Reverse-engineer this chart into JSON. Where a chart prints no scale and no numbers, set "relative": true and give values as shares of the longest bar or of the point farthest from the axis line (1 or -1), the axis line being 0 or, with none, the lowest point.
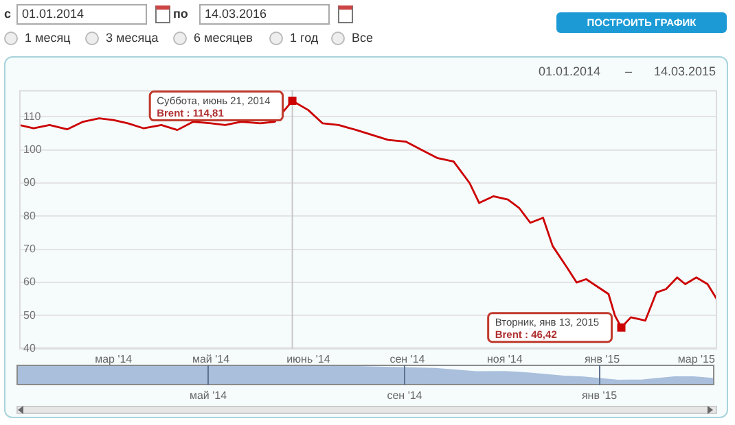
{
  "chart_data": [
    {
      "type": "line",
      "x": [
        "2014-01-01",
        "2014-01-10",
        "2014-01-20",
        "2014-01-31",
        "2014-02-10",
        "2014-02-20",
        "2014-03-01",
        "2014-03-10",
        "2014-03-20",
        "2014-03-31",
        "2014-04-10",
        "2014-04-20",
        "2014-05-01",
        "2014-05-10",
        "2014-05-20",
        "2014-06-01",
        "2014-06-10",
        "2014-06-21",
        "2014-07-01",
        "2014-07-10",
        "2014-07-20",
        "2014-07-31",
        "2014-08-10",
        "2014-08-20",
        "2014-08-31",
        "2014-09-10",
        "2014-09-20",
        "2014-09-30",
        "2014-10-10",
        "2014-10-16",
        "2014-10-25",
        "2014-11-03",
        "2014-11-10",
        "2014-11-17",
        "2014-11-25",
        "2014-12-01",
        "2014-12-10",
        "2014-12-16",
        "2014-12-22",
        "2015-01-05",
        "2015-01-09",
        "2015-01-13",
        "2015-01-19",
        "2015-01-28",
        "2015-02-04",
        "2015-02-10",
        "2015-02-17",
        "2015-02-22",
        "2015-03-01",
        "2015-03-08",
        "2015-03-14"
      ],
      "series": [
        {
          "color": "#cc0000",
          "values": [
            107.5,
            106.5,
            107.5,
            106.2,
            108.5,
            109.5,
            109,
            108,
            106.5,
            107.5,
            106,
            108.5,
            108,
            107.5,
            108.5,
            108,
            108.5,
            114.81,
            112,
            108,
            107.5,
            106,
            104.5,
            103,
            102.5,
            100,
            97.5,
            96.5,
            90,
            84,
            86,
            85,
            82.5,
            78,
            79.5,
            71,
            64.5,
            60,
            61,
            56.5,
            50,
            46.42,
            49.5,
            48.5,
            57,
            58,
            61.5,
            59.5,
            61.5,
            59.5,
            54.8
          ]
        }
      ],
      "xlim": [
        "2014-01-01",
        "2015-03-14"
      ],
      "xticks": [
        {
          "value": "2014-03-01",
          "label": "мар '14"
        },
        {
          "value": "2014-05-01",
          "label": "май '14"
        },
        {
          "value": "2014-07-01",
          "label": "июнь '14"
        },
        {
          "value": "2014-09-01",
          "label": "сен '14"
        },
        {
          "value": "2014-11-01",
          "label": "ноя '14"
        },
        {
          "value": "2015-01-01",
          "label": "янв '15"
        },
        {
          "value": "2015-03-01",
          "label": "мар '15"
        }
      ],
      "ylim": [
        40,
        118
      ],
      "yticks": [
        40,
        50,
        60,
        70,
        80,
        90,
        100,
        110
      ],
      "grid": "y",
      "marker": "none",
      "legend": false,
      "ref_lines": [
        {
          "axis": "x",
          "value": "2014-06-21",
          "color": "#c8c8c8"
        }
      ],
      "annotations": [
        "с",
        "01.01.2014",
        "по",
        "14.03.2016",
        "1 месяц",
        "3 месяца",
        "6 месяцев",
        "1 год",
        "Все",
        "ПОСТРОИТЬ ГРАФИК",
        "01.01.2014",
        "–",
        "14.03.2015",
        {
          "text": "Суббота, июнь 21, 2014\nBrent : 114,81",
          "x": "2014-06-21",
          "y": 114.81
        },
        {
          "text": "Вторник, янв 13, 2015\nBrent : 46,42",
          "x": "2015-01-13",
          "y": 46.42
        }
      ]
    },
    {
      "type": "area",
      "x": [
        "2014-01-01",
        "2014-02-20",
        "2014-03-20",
        "2014-04-20",
        "2014-05-20",
        "2014-06-21",
        "2014-07-20",
        "2014-08-20",
        "2014-09-20",
        "2014-10-16",
        "2014-11-03",
        "2014-11-17",
        "2014-12-10",
        "2014-12-22",
        "2015-01-13",
        "2015-01-28",
        "2015-02-17",
        "2015-03-01",
        "2015-03-14"
      ],
      "series": [
        {
          "color": "#a9bfdc",
          "values": [
            0.92,
            0.94,
            0.91,
            0.94,
            0.95,
            1,
            0.92,
            0.87,
            0.81,
            0.65,
            0.66,
            0.59,
            0.43,
            0.39,
            0.23,
            0.25,
            0.4,
            0.4,
            0.32
          ]
        }
      ],
      "relative": true,
      "xlim": [
        "2014-01-01",
        "2015-03-14"
      ],
      "xticks": [
        {
          "value": "2014-05-01",
          "label": "май '14"
        },
        {
          "value": "2014-09-01",
          "label": "сен '14"
        },
        {
          "value": "2015-01-01",
          "label": "янв '15"
        }
      ],
      "tick_labels": "x",
      "grid": "x",
      "legend": false
    }
  ]
}
